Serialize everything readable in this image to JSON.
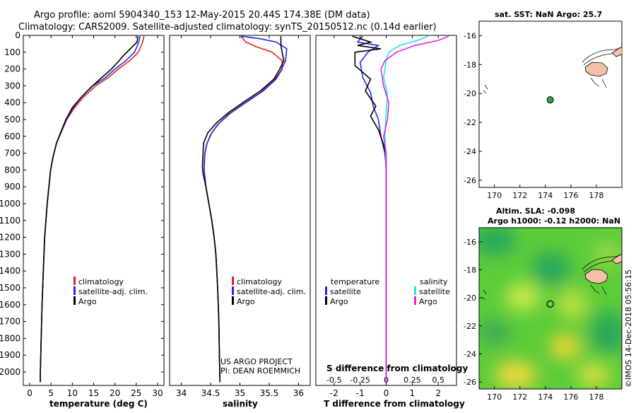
{
  "title_line1": "Argo profile: aoml 5904340_153 12-May-2015 20.44S 174.38E (DM data)",
  "title_line2": "Climatology: CARS2009. Satellite-adjusted climatology: synTS_20150512.nc (0.14d earlier)",
  "colors": {
    "climatology": "#e8201c",
    "satellite": "#1c2ae8",
    "argo": "#000000",
    "sat_salinity": "#18e8e8",
    "clim_salinity": "#e820e0",
    "land": "#f2c2a8",
    "marker": "#2ba34a"
  },
  "chart_data": [
    {
      "id": "temperature",
      "type": "line",
      "xlabel": "temperature (deg C)",
      "ylabel": "",
      "xlim": [
        -1.5,
        31.5
      ],
      "ylim": [
        2080,
        0
      ],
      "xticks": [
        0,
        5,
        10,
        15,
        20,
        25,
        30
      ],
      "yticks": [
        0,
        100,
        200,
        300,
        400,
        500,
        600,
        700,
        800,
        900,
        1000,
        1100,
        1200,
        1300,
        1400,
        1500,
        1600,
        1700,
        1800,
        1900,
        2000
      ],
      "legend": [
        "climatology",
        "satellite-adj. clim.",
        "Argo"
      ],
      "series": [
        {
          "name": "climatology",
          "color": "#e8201c",
          "points": [
            [
              26.8,
              5
            ],
            [
              26.5,
              40
            ],
            [
              25.5,
              100
            ],
            [
              23.5,
              150
            ],
            [
              20.8,
              200
            ],
            [
              18.5,
              250
            ],
            [
              15.5,
              300
            ],
            [
              12.5,
              370
            ],
            [
              10.5,
              430
            ],
            [
              8.7,
              500
            ],
            [
              7.3,
              580
            ],
            [
              6.3,
              640
            ],
            [
              5.5,
              720
            ],
            [
              4.9,
              800
            ],
            [
              4.5,
              900
            ],
            [
              4.1,
              1000
            ],
            [
              3.8,
              1100
            ],
            [
              3.5,
              1200
            ],
            [
              3.2,
              1400
            ],
            [
              2.9,
              1600
            ],
            [
              2.7,
              1800
            ],
            [
              2.5,
              2000
            ],
            [
              2.5,
              2060
            ]
          ]
        },
        {
          "name": "satellite-adj. clim.",
          "color": "#1c2ae8",
          "points": [
            [
              25.9,
              5
            ],
            [
              25.6,
              40
            ],
            [
              24.6,
              100
            ],
            [
              22.6,
              150
            ],
            [
              20.0,
              200
            ],
            [
              17.8,
              250
            ],
            [
              14.8,
              300
            ],
            [
              12.0,
              370
            ],
            [
              10.2,
              430
            ],
            [
              8.6,
              500
            ],
            [
              7.3,
              580
            ],
            [
              6.3,
              640
            ],
            [
              5.5,
              720
            ],
            [
              4.9,
              800
            ],
            [
              4.5,
              900
            ],
            [
              4.1,
              1000
            ],
            [
              3.8,
              1100
            ],
            [
              3.5,
              1200
            ],
            [
              3.2,
              1400
            ],
            [
              2.9,
              1600
            ],
            [
              2.7,
              1800
            ],
            [
              2.5,
              2000
            ],
            [
              2.5,
              2060
            ]
          ]
        },
        {
          "name": "Argo",
          "color": "#000000",
          "points": [
            [
              25.4,
              5
            ],
            [
              25.2,
              40
            ],
            [
              23.6,
              80
            ],
            [
              22.0,
              120
            ],
            [
              21.0,
              150
            ],
            [
              19.2,
              200
            ],
            [
              16.5,
              260
            ],
            [
              14.3,
              310
            ],
            [
              12.0,
              370
            ],
            [
              10.0,
              430
            ],
            [
              8.5,
              500
            ],
            [
              7.2,
              580
            ],
            [
              6.3,
              640
            ],
            [
              5.5,
              720
            ],
            [
              4.9,
              800
            ],
            [
              4.5,
              900
            ],
            [
              4.1,
              1000
            ],
            [
              3.8,
              1100
            ],
            [
              3.5,
              1200
            ],
            [
              3.2,
              1400
            ],
            [
              2.9,
              1600
            ],
            [
              2.7,
              1800
            ],
            [
              2.5,
              2000
            ],
            [
              2.5,
              2060
            ]
          ]
        }
      ]
    },
    {
      "id": "salinity",
      "type": "line",
      "xlabel": "salinity",
      "xlim": [
        33.8,
        36.2
      ],
      "ylim": [
        2080,
        0
      ],
      "xticks": [
        34,
        34.5,
        35,
        35.5,
        36
      ],
      "legend": [
        "climatology",
        "satellite-adj. clim.",
        "Argo"
      ],
      "annotation": [
        "US ARGO PROJECT",
        "PI: DEAN ROEMMICH"
      ],
      "series": [
        {
          "name": "climatology",
          "color": "#e8201c",
          "points": [
            [
              35.02,
              5
            ],
            [
              35.1,
              40
            ],
            [
              35.3,
              70
            ],
            [
              35.55,
              100
            ],
            [
              35.72,
              150
            ],
            [
              35.72,
              200
            ],
            [
              35.62,
              260
            ],
            [
              35.4,
              330
            ],
            [
              35.1,
              400
            ],
            [
              34.85,
              460
            ],
            [
              34.65,
              520
            ],
            [
              34.52,
              580
            ],
            [
              34.44,
              640
            ],
            [
              34.4,
              700
            ],
            [
              34.39,
              760
            ],
            [
              34.39,
              800
            ],
            [
              34.42,
              900
            ],
            [
              34.47,
              1000
            ],
            [
              34.52,
              1100
            ],
            [
              34.56,
              1200
            ],
            [
              34.59,
              1300
            ],
            [
              34.62,
              1500
            ],
            [
              34.64,
              1700
            ],
            [
              34.65,
              1900
            ],
            [
              34.66,
              2060
            ]
          ]
        },
        {
          "name": "satellite-adj. clim.",
          "color": "#1c2ae8",
          "points": [
            [
              35.02,
              5
            ],
            [
              35.35,
              20
            ],
            [
              35.62,
              40
            ],
            [
              35.8,
              80
            ],
            [
              35.78,
              150
            ],
            [
              35.7,
              210
            ],
            [
              35.58,
              270
            ],
            [
              35.35,
              340
            ],
            [
              35.05,
              410
            ],
            [
              34.8,
              470
            ],
            [
              34.62,
              530
            ],
            [
              34.5,
              590
            ],
            [
              34.43,
              650
            ],
            [
              34.4,
              710
            ],
            [
              34.39,
              800
            ],
            [
              34.42,
              900
            ],
            [
              34.47,
              1000
            ],
            [
              34.52,
              1100
            ],
            [
              34.56,
              1200
            ],
            [
              34.59,
              1300
            ],
            [
              34.62,
              1500
            ],
            [
              34.64,
              1700
            ],
            [
              34.65,
              1900
            ],
            [
              34.66,
              2060
            ]
          ]
        },
        {
          "name": "Argo",
          "color": "#000000",
          "points": [
            [
              35.7,
              5
            ],
            [
              35.7,
              60
            ],
            [
              35.72,
              100
            ],
            [
              35.75,
              150
            ],
            [
              35.68,
              200
            ],
            [
              35.58,
              260
            ],
            [
              35.35,
              330
            ],
            [
              35.05,
              400
            ],
            [
              34.8,
              460
            ],
            [
              34.6,
              520
            ],
            [
              34.45,
              580
            ],
            [
              34.38,
              640
            ],
            [
              34.37,
              700
            ],
            [
              34.36,
              780
            ],
            [
              34.37,
              820
            ],
            [
              34.42,
              900
            ],
            [
              34.47,
              1000
            ],
            [
              34.52,
              1100
            ],
            [
              34.56,
              1200
            ],
            [
              34.59,
              1300
            ],
            [
              34.62,
              1500
            ],
            [
              34.64,
              1700
            ],
            [
              34.65,
              1900
            ],
            [
              34.66,
              2060
            ]
          ]
        }
      ]
    },
    {
      "id": "difference",
      "type": "line",
      "xlabel": "T difference from climatology",
      "top_axis_label": "S difference from climatology",
      "xlim": [
        -2.7,
        2.7
      ],
      "ylim": [
        2080,
        0
      ],
      "xticks": [
        -2,
        -1,
        0,
        1,
        2
      ],
      "top_ticks": [
        "-0.5",
        "-0.25",
        "0",
        "0.25",
        "0.5"
      ],
      "legend_left_title": "temperature",
      "legend_right_title": "salinity",
      "legend_left": [
        "satellite",
        "Argo"
      ],
      "legend_right": [
        "satellite",
        "Argo"
      ],
      "series": [
        {
          "name": "T satellite",
          "color": "#1c2ae8",
          "points": [
            [
              -0.9,
              5
            ],
            [
              -1.1,
              40
            ],
            [
              -0.3,
              60
            ],
            [
              -0.7,
              100
            ],
            [
              -1.0,
              160
            ],
            [
              -0.9,
              250
            ],
            [
              -0.6,
              340
            ],
            [
              -0.5,
              420
            ],
            [
              -0.3,
              500
            ],
            [
              -0.2,
              600
            ],
            [
              -0.05,
              700
            ],
            [
              0,
              800
            ],
            [
              0,
              2060
            ]
          ]
        },
        {
          "name": "T Argo",
          "color": "#000000",
          "points": [
            [
              -1.3,
              5
            ],
            [
              -0.6,
              40
            ],
            [
              -1.1,
              60
            ],
            [
              -0.2,
              80
            ],
            [
              -1.2,
              100
            ],
            [
              -1.2,
              180
            ],
            [
              -0.6,
              260
            ],
            [
              -0.8,
              330
            ],
            [
              -0.4,
              420
            ],
            [
              -0.6,
              480
            ],
            [
              -0.3,
              560
            ],
            [
              -0.1,
              650
            ],
            [
              0,
              750
            ],
            [
              0,
              2060
            ]
          ]
        },
        {
          "name": "S satellite",
          "color": "#18e8e8",
          "points": [
            [
              1.6,
              5
            ],
            [
              1.2,
              30
            ],
            [
              0.5,
              60
            ],
            [
              0.1,
              100
            ],
            [
              0.0,
              150
            ],
            [
              -0.1,
              250
            ],
            [
              0.05,
              350
            ],
            [
              0.0,
              450
            ],
            [
              -0.05,
              600
            ],
            [
              0.0,
              800
            ],
            [
              0,
              2060
            ]
          ]
        },
        {
          "name": "S Argo",
          "color": "#e820e0",
          "points": [
            [
              2.4,
              5
            ],
            [
              2.0,
              30
            ],
            [
              1.1,
              60
            ],
            [
              0.4,
              100
            ],
            [
              -0.05,
              150
            ],
            [
              -0.2,
              200
            ],
            [
              -0.1,
              300
            ],
            [
              0.1,
              400
            ],
            [
              0.05,
              500
            ],
            [
              -0.1,
              600
            ],
            [
              0.0,
              700
            ],
            [
              0.0,
              800
            ],
            [
              0,
              2060
            ]
          ]
        }
      ]
    }
  ],
  "maps": {
    "sst": {
      "title": "sat. SST: NaN Argo: 25.7",
      "xticks": [
        "170",
        "172",
        "174",
        "176",
        "178"
      ],
      "yticks": [
        "-16",
        "-18",
        "-20",
        "-22",
        "-24",
        "-26"
      ],
      "xlim": [
        168.8,
        180
      ],
      "ylim": [
        -26.5,
        -15
      ]
    },
    "sla": {
      "title_line1": "Altim. SLA: -0.098",
      "title_line2": "Argo h1000: -0.12 h2000: NaN",
      "xticks": [
        "170",
        "172",
        "174",
        "176",
        "178"
      ],
      "yticks": [
        "-16",
        "-18",
        "-20",
        "-22",
        "-24",
        "-26"
      ],
      "xlim": [
        168.8,
        180
      ],
      "ylim": [
        -26.5,
        -15
      ]
    },
    "profile_position": {
      "lon": 174.38,
      "lat": -20.44
    }
  },
  "side_credit": "©IMOS 14-Dec-2018 05:56:15"
}
